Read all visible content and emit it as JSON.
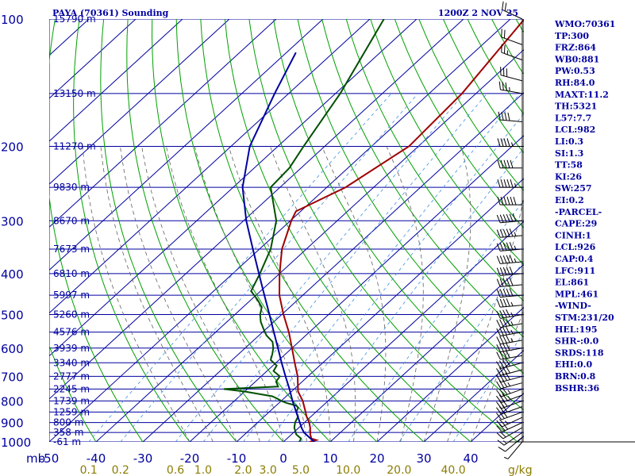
{
  "header": {
    "station": "PAYA (70361) Sounding",
    "time": "1200Z  2 NOV 25"
  },
  "indices": [
    "WMO:70361",
    "TP:300",
    "FRZ:864",
    "WB0:881",
    "PW:0.53",
    "RH:84.0",
    "MAXT:11.2",
    "TH:5321",
    "L57:7.7",
    "LCL:982",
    "LI:0.3",
    "SI:1.3",
    "TT:58",
    "KI:26",
    "SW:257",
    "EI:0.2",
    "-PARCEL-",
    "CAPE:29",
    "CINH:1",
    "LCL:926",
    "CAP:0.4",
    "LFC:911",
    "EL:861",
    "MPL:461",
    "-WIND-",
    "STM:231/20",
    "HEL:195",
    "SHR-:0.0",
    "SRDS:118",
    "EHI:0.0",
    "BRN:0.8",
    "BSHR:36"
  ],
  "chart_data": {
    "type": "line",
    "title": "PAYA (70361) Sounding",
    "xlabel": "",
    "ylabel": "mb",
    "x_unit_label": "g/kg",
    "xlim": [
      -50,
      50
    ],
    "ylim": [
      1000,
      100
    ],
    "y_scale": "log",
    "pressure_ticks": [
      "100",
      "200",
      "300",
      "400",
      "500",
      "600",
      "700",
      "800",
      "900",
      "1000"
    ],
    "pressure_tick_values": [
      100,
      200,
      300,
      400,
      500,
      600,
      700,
      800,
      900,
      1000
    ],
    "temperature_ticks": [
      "-50",
      "-40",
      "-30",
      "-20",
      "-10",
      "0",
      "10",
      "20",
      "30",
      "40"
    ],
    "temperature_tick_values": [
      -50,
      -40,
      -30,
      -20,
      -10,
      0,
      10,
      20,
      30,
      40
    ],
    "mixing_ratio_ticks": [
      "0.1",
      "0.2",
      "0.6",
      "1.0",
      "2.0",
      "3.0",
      "5.0",
      "10.0",
      "20.0",
      "40.0"
    ],
    "mixing_ratio_tick_values": [
      0.1,
      0.2,
      0.6,
      1.0,
      2.0,
      3.0,
      5.0,
      10.0,
      20.0,
      40.0
    ],
    "height_labels": [
      {
        "p": 100,
        "text": "15790 m"
      },
      {
        "p": 150,
        "text": "13150 m"
      },
      {
        "p": 200,
        "text": "11270 m"
      },
      {
        "p": 250,
        "text": "9830 m"
      },
      {
        "p": 300,
        "text": "8670 m"
      },
      {
        "p": 350,
        "text": "7673 m"
      },
      {
        "p": 400,
        "text": "6810 m"
      },
      {
        "p": 450,
        "text": "5997 m"
      },
      {
        "p": 500,
        "text": "5260 m"
      },
      {
        "p": 550,
        "text": "4576 m"
      },
      {
        "p": 600,
        "text": "3939 m"
      },
      {
        "p": 650,
        "text": "3340 m"
      },
      {
        "p": 700,
        "text": "2777 m"
      },
      {
        "p": 750,
        "text": "2245 m"
      },
      {
        "p": 800,
        "text": "1739 m"
      },
      {
        "p": 850,
        "text": "1259 m"
      },
      {
        "p": 900,
        "text": "800 m"
      },
      {
        "p": 950,
        "text": "358 m"
      },
      {
        "p": 1000,
        "text": "-61 m"
      }
    ],
    "series": [
      {
        "name": "Temperature",
        "color": "#a00000",
        "points": [
          [
            1000,
            5.6
          ],
          [
            990,
            6.6
          ],
          [
            982,
            5.2
          ],
          [
            960,
            4.0
          ],
          [
            925,
            2.4
          ],
          [
            900,
            1.0
          ],
          [
            870,
            -1.0
          ],
          [
            850,
            -2.2
          ],
          [
            800,
            -5.4
          ],
          [
            760,
            -8.6
          ],
          [
            700,
            -12.2
          ],
          [
            650,
            -16.0
          ],
          [
            600,
            -20.0
          ],
          [
            550,
            -24.4
          ],
          [
            500,
            -29.6
          ],
          [
            450,
            -35.0
          ],
          [
            400,
            -40.0
          ],
          [
            350,
            -45.2
          ],
          [
            300,
            -49.8
          ],
          [
            285,
            -51.0
          ],
          [
            250,
            -46.0
          ],
          [
            200,
            -42.0
          ],
          [
            150,
            -43.0
          ],
          [
            100,
            -47.0
          ]
        ]
      },
      {
        "name": "Dewpoint",
        "color": "#005000",
        "points": [
          [
            1000,
            3.4
          ],
          [
            982,
            3.0
          ],
          [
            960,
            1.0
          ],
          [
            925,
            -1.0
          ],
          [
            900,
            -2.0
          ],
          [
            870,
            -2.8
          ],
          [
            850,
            -4.2
          ],
          [
            830,
            -4.8
          ],
          [
            820,
            -5.8
          ],
          [
            810,
            -8.2
          ],
          [
            800,
            -10.0
          ],
          [
            790,
            -11.4
          ],
          [
            780,
            -13.0
          ],
          [
            760,
            -20.0
          ],
          [
            750,
            -25.0
          ],
          [
            740,
            -14.0
          ],
          [
            720,
            -15.6
          ],
          [
            700,
            -16.0
          ],
          [
            680,
            -18.6
          ],
          [
            660,
            -19.2
          ],
          [
            640,
            -21.8
          ],
          [
            620,
            -22.8
          ],
          [
            600,
            -24.0
          ],
          [
            580,
            -25.6
          ],
          [
            560,
            -28.4
          ],
          [
            540,
            -30.6
          ],
          [
            520,
            -32.8
          ],
          [
            500,
            -34.6
          ],
          [
            480,
            -36.0
          ],
          [
            460,
            -38.8
          ],
          [
            440,
            -42.0
          ],
          [
            400,
            -44.2
          ],
          [
            350,
            -47.6
          ],
          [
            300,
            -53.0
          ],
          [
            250,
            -62.0
          ],
          [
            225,
            -62.5
          ],
          [
            200,
            -64.5
          ],
          [
            150,
            -69.0
          ],
          [
            100,
            -77.0
          ]
        ]
      },
      {
        "name": "Parcel",
        "color": "#0000a0",
        "points": [
          [
            1000,
            6.6
          ],
          [
            950,
            2.2
          ],
          [
            926,
            0.6
          ],
          [
            900,
            -1.0
          ],
          [
            850,
            -4.2
          ],
          [
            800,
            -7.6
          ],
          [
            750,
            -11.0
          ],
          [
            700,
            -14.8
          ],
          [
            650,
            -18.8
          ],
          [
            600,
            -23.0
          ],
          [
            550,
            -27.6
          ],
          [
            500,
            -32.6
          ],
          [
            450,
            -38.2
          ],
          [
            400,
            -44.4
          ],
          [
            350,
            -51.4
          ],
          [
            300,
            -59.4
          ],
          [
            250,
            -68.0
          ],
          [
            200,
            -76.0
          ],
          [
            150,
            -83.0
          ],
          [
            120,
            -88.0
          ]
        ]
      }
    ],
    "wind_barbs": [
      {
        "p": 1000,
        "dir": 220,
        "spd": 5
      },
      {
        "p": 975,
        "dir": 230,
        "spd": 10
      },
      {
        "p": 950,
        "dir": 235,
        "spd": 15
      },
      {
        "p": 925,
        "dir": 240,
        "spd": 20
      },
      {
        "p": 900,
        "dir": 245,
        "spd": 25
      },
      {
        "p": 875,
        "dir": 245,
        "spd": 25
      },
      {
        "p": 850,
        "dir": 250,
        "spd": 30
      },
      {
        "p": 825,
        "dir": 250,
        "spd": 30
      },
      {
        "p": 800,
        "dir": 250,
        "spd": 30
      },
      {
        "p": 775,
        "dir": 250,
        "spd": 35
      },
      {
        "p": 750,
        "dir": 250,
        "spd": 35
      },
      {
        "p": 725,
        "dir": 255,
        "spd": 35
      },
      {
        "p": 700,
        "dir": 255,
        "spd": 40
      },
      {
        "p": 675,
        "dir": 255,
        "spd": 40
      },
      {
        "p": 650,
        "dir": 255,
        "spd": 40
      },
      {
        "p": 625,
        "dir": 260,
        "spd": 40
      },
      {
        "p": 600,
        "dir": 260,
        "spd": 40
      },
      {
        "p": 575,
        "dir": 260,
        "spd": 45
      },
      {
        "p": 550,
        "dir": 260,
        "spd": 45
      },
      {
        "p": 525,
        "dir": 260,
        "spd": 45
      },
      {
        "p": 500,
        "dir": 260,
        "spd": 45
      },
      {
        "p": 475,
        "dir": 265,
        "spd": 45
      },
      {
        "p": 450,
        "dir": 265,
        "spd": 50
      },
      {
        "p": 425,
        "dir": 265,
        "spd": 50
      },
      {
        "p": 400,
        "dir": 265,
        "spd": 50
      },
      {
        "p": 375,
        "dir": 265,
        "spd": 55
      },
      {
        "p": 350,
        "dir": 265,
        "spd": 55
      },
      {
        "p": 325,
        "dir": 265,
        "spd": 55
      },
      {
        "p": 300,
        "dir": 265,
        "spd": 60
      },
      {
        "p": 275,
        "dir": 270,
        "spd": 60
      },
      {
        "p": 250,
        "dir": 270,
        "spd": 55
      },
      {
        "p": 225,
        "dir": 270,
        "spd": 50
      },
      {
        "p": 200,
        "dir": 270,
        "spd": 45
      },
      {
        "p": 175,
        "dir": 275,
        "spd": 40
      },
      {
        "p": 150,
        "dir": 280,
        "spd": 35
      },
      {
        "p": 140,
        "dir": 285,
        "spd": 30
      },
      {
        "p": 125,
        "dir": 290,
        "spd": 25
      },
      {
        "p": 115,
        "dir": 290,
        "spd": 20
      },
      {
        "p": 100,
        "dir": 295,
        "spd": 20
      }
    ],
    "grid": true,
    "colors": {
      "isobar": "#0000a0",
      "isotherm": "#0000a0",
      "dry_adiabat": "#00a000",
      "moist_adiabat": "#606060",
      "mixing_ratio": "#4090e0",
      "temperature": "#a00000",
      "dewpoint": "#005000",
      "parcel": "#0000a0",
      "wind": "#000000",
      "index_text": "#0000a0",
      "mixing_ratio_text": "#8b7d00"
    }
  }
}
